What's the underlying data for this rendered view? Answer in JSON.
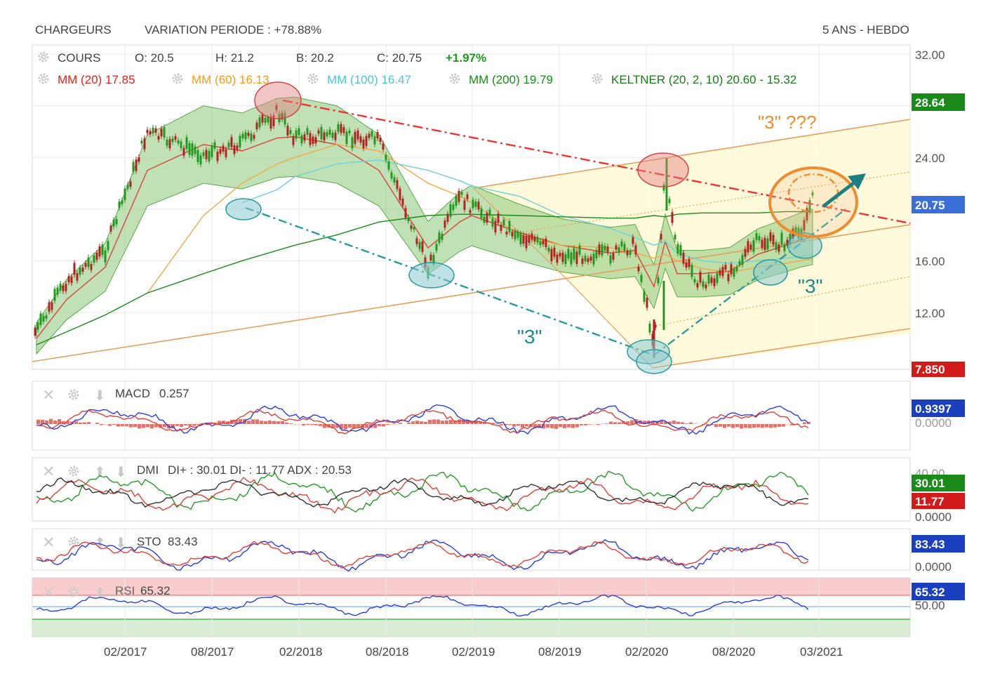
{
  "header": {
    "ticker": "CHARGEURS",
    "variation": "VARIATION PERIODE : +78.88%",
    "timeframe": "5 ANS - HEBDO"
  },
  "quote": {
    "label": "COURS",
    "open": "O: 20.5",
    "high": "H: 21.2",
    "low": "B: 20.2",
    "close": "C: 20.75",
    "change": "+1.97%"
  },
  "overlays": [
    {
      "label": "MM (20)",
      "value": "17.85",
      "color": "#e2231a"
    },
    {
      "label": "MM (60)",
      "value": "16.13",
      "color": "#f39c12"
    },
    {
      "label": "MM (100)",
      "value": "16.47",
      "color": "#4fc6cf"
    },
    {
      "label": "MM (200)",
      "value": "19.79",
      "color": "#1a8a1a"
    },
    {
      "label": "KELTNER (20, 2, 10)",
      "value": "20.60 - 15.32",
      "color": "#1a7a1a"
    }
  ],
  "annotations": {
    "wave_main": "\"3\" ???",
    "wave_a": "\"3\"",
    "wave_b": "\"3\""
  },
  "price_axis": {
    "ticks": [
      "32.00",
      "24.00",
      "16.00",
      "12.00"
    ],
    "badges": [
      {
        "value": "28.64",
        "color": "#1a8a1a"
      },
      {
        "value": "20.75",
        "color": "#3a6fd8"
      },
      {
        "value": "7.850",
        "color": "#d11a1a"
      }
    ]
  },
  "x_axis": {
    "ticks": [
      "02/2017",
      "08/2017",
      "02/2018",
      "08/2018",
      "02/2019",
      "08/2019",
      "02/2020",
      "08/2020",
      "03/2021"
    ]
  },
  "indicators": {
    "macd": {
      "label": "MACD",
      "value": "0.257",
      "badge": "0.9397",
      "axis_hidden": "0.0000"
    },
    "dmi": {
      "label": "DMI",
      "values": "DI+ : 30.01 DI- : 11.77 ADX : 20.53",
      "badge_plus": "30.01",
      "badge_minus": "11.77",
      "axis": "0.0000",
      "axis_hidden": "40.00"
    },
    "sto": {
      "label": "STO",
      "value": "83.43",
      "badge": "83.43",
      "axis": "0.0000"
    },
    "rsi": {
      "label": "RSI",
      "value": "65.32",
      "badge": "65.32",
      "axis": "50.00"
    }
  },
  "chart_data": {
    "type": "line",
    "title": "CHARGEURS",
    "subtitle": "5 ANS - HEBDO",
    "x": [
      "2016-09",
      "2016-12",
      "2017-02",
      "2017-05",
      "2017-08",
      "2017-11",
      "2018-01",
      "2018-02",
      "2018-05",
      "2018-08",
      "2018-11",
      "2019-01",
      "2019-02",
      "2019-05",
      "2019-08",
      "2019-11",
      "2020-01",
      "2020-02",
      "2020-03",
      "2020-04",
      "2020-06",
      "2020-08",
      "2020-10",
      "2020-12",
      "2021-01",
      "2021-02"
    ],
    "ylim": [
      7.85,
      32.0
    ],
    "series": [
      {
        "name": "COURS",
        "values": [
          10.5,
          14.5,
          16.8,
          26.0,
          24.2,
          25.2,
          27.5,
          25.6,
          25.8,
          25.3,
          15.5,
          21.0,
          20.2,
          18.0,
          16.4,
          16.5,
          17.2,
          23.0,
          9.5,
          16.8,
          14.1,
          15.2,
          17.5,
          17.3,
          18.2,
          20.75
        ]
      },
      {
        "name": "MM (20)",
        "values": [
          10.0,
          13.0,
          15.5,
          23.0,
          25.0,
          24.5,
          25.5,
          25.6,
          25.0,
          23.0,
          17.0,
          19.0,
          19.5,
          18.2,
          17.2,
          16.6,
          16.8,
          17.5,
          14.0,
          15.0,
          15.0,
          15.2,
          16.5,
          17.2,
          17.6,
          17.85
        ]
      },
      {
        "name": "MM (60)",
        "values": [
          null,
          null,
          null,
          13.5,
          19.5,
          22.0,
          23.5,
          24.0,
          25.0,
          24.5,
          22.0,
          21.0,
          20.5,
          18.0,
          17.2,
          17.0,
          16.6,
          16.5,
          16.2,
          16.0,
          15.4,
          15.1,
          15.5,
          15.8,
          16.0,
          16.13
        ]
      },
      {
        "name": "MM (100)",
        "values": [
          null,
          null,
          null,
          null,
          null,
          20.5,
          21.5,
          22.5,
          23.5,
          23.8,
          23.0,
          22.2,
          21.8,
          21.0,
          19.5,
          18.5,
          17.8,
          17.5,
          17.2,
          16.6,
          16.0,
          15.8,
          16.0,
          16.2,
          16.3,
          16.47
        ]
      },
      {
        "name": "MM (200)",
        "values": [
          9.5,
          10.5,
          11.8,
          13.5,
          15.0,
          16.0,
          16.8,
          17.2,
          18.0,
          19.0,
          19.5,
          19.6,
          19.6,
          19.5,
          19.4,
          19.3,
          19.3,
          19.4,
          19.5,
          19.6,
          19.7,
          19.7,
          19.7,
          19.8,
          19.8,
          19.79
        ]
      }
    ]
  }
}
